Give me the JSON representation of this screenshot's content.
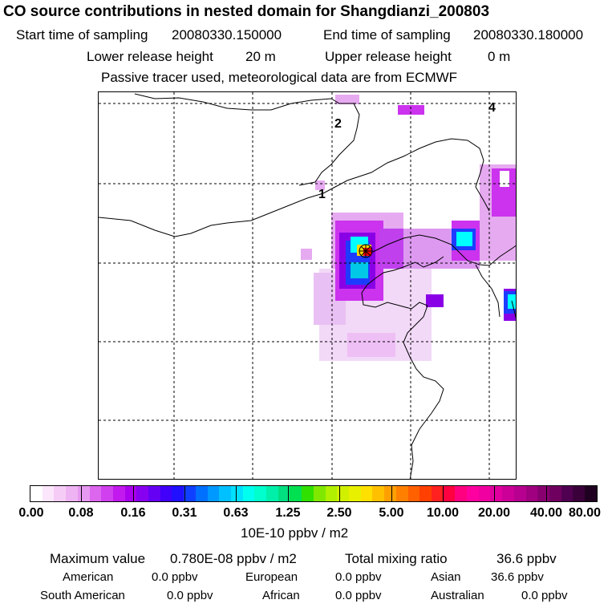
{
  "header": {
    "title": "CO  source contributions in nested domain for Shangdianzi_200803",
    "start_label": "Start time of sampling",
    "start_value": "20080330.150000",
    "end_label": "End time of sampling",
    "end_value": "20080330.180000",
    "lower_label": "Lower release height",
    "lower_value": "20 m",
    "upper_label": "Upper release height",
    "upper_value": "0 m",
    "tracer_note": "Passive tracer used, meteorological data are from ECMWF"
  },
  "map": {
    "markers": [
      "1",
      "2",
      "4"
    ],
    "receptor_icon": "receptor-star-icon",
    "colors": {
      "light_violet": "#f2d9f7",
      "violet": "#e6aaf0",
      "purple": "#cc33ee",
      "deep_purple": "#8a00e6",
      "blue": "#1e3cff",
      "cyan": "#00ffff",
      "aqua": "#00c8e6",
      "yellow": "#ffd700",
      "red": "#ff0000"
    }
  },
  "colorbar": {
    "labels": [
      "0.00",
      "0.08",
      "0.16",
      "0.31",
      "0.63",
      "1.25",
      "2.50",
      "5.00",
      "10.00",
      "20.00",
      "40.00",
      "80.00"
    ],
    "colors": [
      "#ffffff",
      "#fbe6fb",
      "#f5ccf5",
      "#eeb3f3",
      "#e699f0",
      "#dd66ee",
      "#d040ee",
      "#c21aee",
      "#aa00ee",
      "#8800f0",
      "#6600f5",
      "#4000fa",
      "#2010ff",
      "#1040ff",
      "#0070ff",
      "#0099ff",
      "#00c0ff",
      "#00e0ff",
      "#00ffee",
      "#00ffcc",
      "#00f0aa",
      "#00e080",
      "#00e050",
      "#30e000",
      "#80e800",
      "#b0f000",
      "#d0f000",
      "#e8f000",
      "#ffe000",
      "#ffc000",
      "#ffa000",
      "#ff8000",
      "#ff6000",
      "#ff4000",
      "#ff2020",
      "#ff0040",
      "#ff0080",
      "#ff00a0",
      "#f000a0",
      "#e000a0",
      "#cc0099",
      "#b80090",
      "#a00080",
      "#880070",
      "#700060",
      "#500050",
      "#3a003a",
      "#200020"
    ],
    "units": "10E-10 ppbv / m2"
  },
  "stats": {
    "max_label": "Maximum value",
    "max_value": "0.780E-08 ppbv / m2",
    "total_label": "Total mixing ratio",
    "total_value": "36.6 ppbv",
    "american_label": "American",
    "american_value": "0.0 ppbv",
    "european_label": "European",
    "european_value": "0.0 ppbv",
    "asian_label": "Asian",
    "asian_value": "36.6 ppbv",
    "south_american_label": "South American",
    "south_american_value": "0.0 ppbv",
    "african_label": "African",
    "african_value": "0.0 ppbv",
    "australian_label": "Australian",
    "australian_value": "0.0 ppbv"
  }
}
